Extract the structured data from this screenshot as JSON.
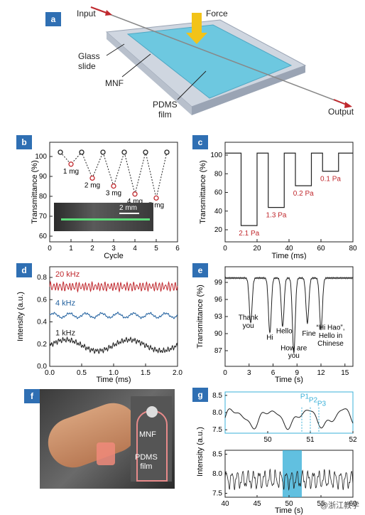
{
  "panels": {
    "a": {
      "label": "a",
      "input": "Input",
      "force": "Force",
      "glass": [
        "Glass",
        "slide"
      ],
      "mnf": "MNF",
      "pdms": [
        "PDMS",
        "film"
      ],
      "output": "Output"
    },
    "b": {
      "label": "b",
      "ylabel": "Transmittance (%)",
      "xlabel": "Cycle",
      "xticks": [
        "0",
        "1",
        "2",
        "3",
        "4",
        "5",
        "6"
      ],
      "yticks": [
        "60",
        "70",
        "80",
        "90",
        "100"
      ],
      "scale": "2 mm",
      "masses": [
        "1 mg",
        "2 mg",
        "3 mg",
        "4 mg",
        "5 mg"
      ]
    },
    "c": {
      "label": "c",
      "ylabel": "Transmittance (%)",
      "xlabel": "Time (ms)",
      "xticks": [
        "0",
        "20",
        "40",
        "60",
        "80"
      ],
      "yticks": [
        "20",
        "40",
        "60",
        "80",
        "100"
      ],
      "pressures": [
        "2.1 Pa",
        "1.3 Pa",
        "0.2 Pa",
        "0.1 Pa"
      ]
    },
    "d": {
      "label": "d",
      "ylabel": "Intensity (a.u.)",
      "xlabel": "Time (ms)",
      "xticks": [
        "0.0",
        "0.5",
        "1.0",
        "1.5",
        "2.0"
      ],
      "yticks": [
        "0.0",
        "0.2",
        "0.4",
        "0.6",
        "0.8"
      ],
      "freqs": [
        "20 kHz",
        "4 kHz",
        "1 kHz"
      ]
    },
    "e": {
      "label": "e",
      "ylabel": "Transmittance (%)",
      "xlabel": "Time (s)",
      "xticks": [
        "0",
        "3",
        "6",
        "9",
        "12",
        "15"
      ],
      "yticks": [
        "87",
        "90",
        "93",
        "96",
        "99"
      ],
      "words": [
        "Thank",
        "you",
        "Hi",
        "Hello",
        "How are",
        "you",
        "Fine",
        "“Hi Hao”,",
        "Hello in",
        "Chinese"
      ]
    },
    "f": {
      "label": "f",
      "mnf": "MNF",
      "pdms": [
        "PDMS",
        "film"
      ]
    },
    "g": {
      "label": "g",
      "ylabel": "Intensity (a.u.)",
      "xlabel": "Time (s)",
      "top_xticks": [
        "50",
        "51",
        "52"
      ],
      "top_yticks": [
        "7.5",
        "8.0",
        "8.5"
      ],
      "bottom_xticks": [
        "40",
        "45",
        "50",
        "55",
        "60"
      ],
      "bottom_yticks": [
        "7.5",
        "8.0",
        "8.5"
      ],
      "peaks": [
        "P1",
        "P2",
        "P3"
      ]
    }
  },
  "watermark": "@浙江教学",
  "colors": {
    "label_bg": "#2f6fb3",
    "red": "#c0282d",
    "blue": "#1f5f9e",
    "cyan": "#3ab0d8"
  },
  "chart_data": [
    {
      "type": "scatter",
      "panel": "b",
      "x": [
        0.5,
        1,
        1.5,
        2,
        2.5,
        3,
        3.5,
        4,
        4.5,
        5,
        5.5
      ],
      "y": [
        100,
        94,
        100,
        87,
        100,
        83,
        100,
        79,
        100,
        77,
        100
      ],
      "xlim": [
        0,
        6
      ],
      "ylim": [
        55,
        105
      ]
    },
    {
      "type": "line",
      "panel": "c",
      "xlim": [
        0,
        80
      ],
      "ylim": [
        0,
        110
      ],
      "levels": [
        {
          "start": 10,
          "end": 20,
          "value": 18
        },
        {
          "start": 27,
          "end": 37,
          "value": 38
        },
        {
          "start": 44,
          "end": 54,
          "value": 62
        },
        {
          "start": 61,
          "end": 71,
          "value": 78
        }
      ]
    },
    {
      "type": "line",
      "panel": "d",
      "xlim": [
        0,
        2
      ],
      "ylim": [
        0,
        0.9
      ],
      "series": [
        {
          "name": "20 kHz",
          "mean": 0.72,
          "amp": 0.03
        },
        {
          "name": "4 kHz",
          "mean": 0.46,
          "amp": 0.02
        },
        {
          "name": "1 kHz",
          "mean": 0.19,
          "amp": 0.05
        }
      ]
    },
    {
      "type": "line",
      "panel": "e",
      "xlim": [
        0,
        16
      ],
      "ylim": [
        86,
        101
      ],
      "dips": [
        {
          "t": 3.2,
          "depth": 92.5
        },
        {
          "t": 5.6,
          "depth": 91
        },
        {
          "t": 7.2,
          "depth": 92
        },
        {
          "t": 8.6,
          "depth": 88
        },
        {
          "t": 10.3,
          "depth": 92.5
        },
        {
          "t": 12.0,
          "depth": 91.5
        }
      ]
    },
    {
      "type": "line",
      "panel": "g-top",
      "xlim": [
        49,
        52
      ],
      "ylim": [
        7.4,
        8.6
      ]
    },
    {
      "type": "line",
      "panel": "g-bottom",
      "xlim": [
        40,
        60
      ],
      "ylim": [
        7.4,
        8.6
      ],
      "highlight": [
        49,
        52
      ]
    }
  ]
}
